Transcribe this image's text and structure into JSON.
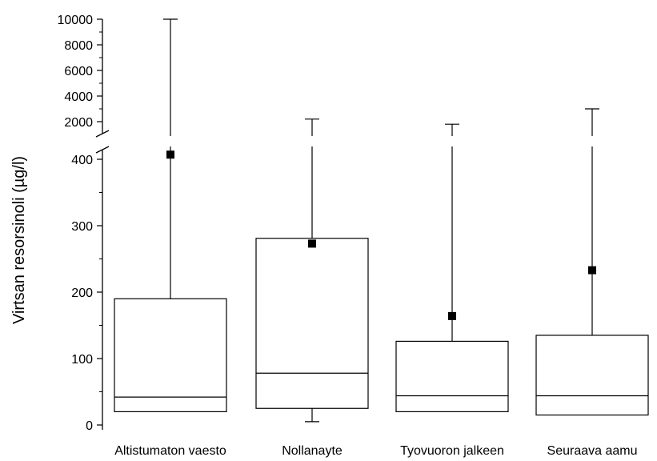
{
  "chart_data": {
    "type": "box",
    "ylabel": "Virtsan resorsinoli (µg/l)",
    "y_axis": {
      "lower_segment": {
        "range": [
          0,
          420
        ],
        "ticks": [
          0,
          100,
          200,
          300,
          400
        ]
      },
      "upper_segment": {
        "range": [
          1600,
          10000
        ],
        "ticks": [
          2000,
          4000,
          6000,
          8000,
          10000
        ]
      },
      "break": "between 420 and 1600"
    },
    "categories": [
      "Altistumaton vaesto",
      "Nollanayte",
      "Tyovuoron jalkeen",
      "Seuraava aamu"
    ],
    "boxes": [
      {
        "name": "Altistumaton vaesto",
        "min": 20,
        "q1": 20,
        "median": 42,
        "q3": 190,
        "max": 10000,
        "mean": 407
      },
      {
        "name": "Nollanayte",
        "min": 5,
        "q1": 25,
        "median": 78,
        "q3": 281,
        "max": 2200,
        "mean": 273
      },
      {
        "name": "Tyovuoron jalkeen",
        "min": 20,
        "q1": 20,
        "median": 44,
        "q3": 126,
        "max": 1800,
        "mean": 164
      },
      {
        "name": "Seuraava aamu",
        "min": 15,
        "q1": 15,
        "median": 44,
        "q3": 135,
        "max": 3000,
        "mean": 233
      }
    ],
    "legend": "none",
    "grid": false
  }
}
